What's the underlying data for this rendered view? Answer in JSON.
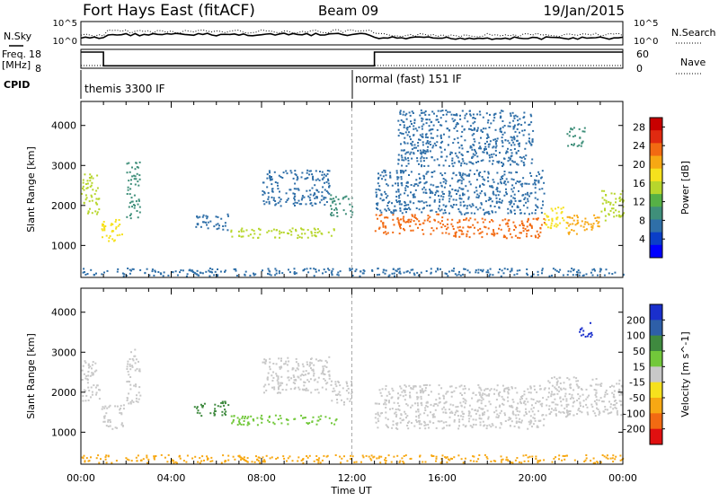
{
  "header": {
    "station": "Fort Hays East (fitACF)",
    "beam": "Beam 09",
    "date": "19/Jan/2015"
  },
  "top_panels": {
    "nsky_label": "N.Sky",
    "nsearch_label": "N.Search",
    "nsky_ticks": [
      "10^5",
      "10^0"
    ],
    "nsearch_ticks": [
      "10^5",
      "10^0"
    ],
    "freq_label_1": "Freq.",
    "freq_label_2": "[MHz]",
    "freq_ticks": [
      "18",
      "8"
    ],
    "nave_label": "Nave",
    "nave_ticks": [
      "60",
      "0"
    ],
    "cpid_label": "CPID",
    "cpid_segments": [
      {
        "label": "themis 3300 IF",
        "start_hour": 0,
        "end_hour": 12
      },
      {
        "label": "normal (fast) 151 IF",
        "start_hour": 12,
        "end_hour": 24
      }
    ],
    "freq_profile": [
      {
        "hour": 0.0,
        "mhz": 18
      },
      {
        "hour": 1.0,
        "mhz": 18
      },
      {
        "hour": 1.0,
        "mhz": 9.5
      },
      {
        "hour": 13.0,
        "mhz": 9.5
      },
      {
        "hour": 13.0,
        "mhz": 18
      },
      {
        "hour": 24.0,
        "mhz": 18
      }
    ]
  },
  "x_axis": {
    "label": "Time UT",
    "ticks": [
      "00:00",
      "04:00",
      "08:00",
      "12:00",
      "16:00",
      "20:00",
      "00:00"
    ]
  },
  "chart_data": [
    {
      "type": "heatmap",
      "panel": "power",
      "ylabel": "Slant Range [km]",
      "yticks": [
        1000,
        2000,
        3000,
        4000
      ],
      "ylim": [
        200,
        4600
      ],
      "xlim_hours": [
        0,
        24
      ],
      "colorbar_label": "Power [dB]",
      "colorbar_ticks": [
        4,
        8,
        12,
        16,
        20,
        24,
        28
      ],
      "colorbar_colors": [
        "#0000ff",
        "#0a3ec8",
        "#2f6fa8",
        "#3f8f7a",
        "#56b046",
        "#b7d62c",
        "#f6e11d",
        "#f7a813",
        "#f26a12",
        "#e02a10",
        "#c80000"
      ],
      "colorbar_range": [
        0,
        30
      ],
      "regions": [
        {
          "t0": 0.0,
          "t1": 0.8,
          "r0": 1800,
          "r1": 2800,
          "value": 14
        },
        {
          "t0": 0.9,
          "t1": 1.9,
          "r0": 1100,
          "r1": 1700,
          "value": 18
        },
        {
          "t0": 2.0,
          "t1": 2.6,
          "r0": 1700,
          "r1": 3100,
          "value": 10
        },
        {
          "t0": 5.0,
          "t1": 6.5,
          "r0": 1400,
          "r1": 1800,
          "value": 8
        },
        {
          "t0": 6.5,
          "t1": 11.3,
          "r0": 1200,
          "r1": 1450,
          "value": 16
        },
        {
          "t0": 8.0,
          "t1": 11.0,
          "r0": 2000,
          "r1": 2900,
          "value": 6
        },
        {
          "t0": 11.0,
          "t1": 12.0,
          "r0": 1700,
          "r1": 2300,
          "value": 10
        },
        {
          "t0": 13.0,
          "t1": 16.0,
          "r0": 1300,
          "r1": 1800,
          "value": 22
        },
        {
          "t0": 16.0,
          "t1": 20.5,
          "r0": 1200,
          "r1": 1700,
          "value": 24
        },
        {
          "t0": 13.0,
          "t1": 20.5,
          "r0": 1800,
          "r1": 2900,
          "value": 8
        },
        {
          "t0": 20.5,
          "t1": 21.5,
          "r0": 1400,
          "r1": 2000,
          "value": 18
        },
        {
          "t0": 21.5,
          "t1": 23.0,
          "r0": 1300,
          "r1": 1800,
          "value": 20
        },
        {
          "t0": 23.0,
          "t1": 24.0,
          "r0": 1600,
          "r1": 2400,
          "value": 14
        },
        {
          "t0": 14.0,
          "t1": 20.0,
          "r0": 3000,
          "r1": 4400,
          "value": 6
        },
        {
          "t0": 21.5,
          "t1": 22.3,
          "r0": 3500,
          "r1": 4000,
          "value": 10
        },
        {
          "t0": 0.0,
          "t1": 24.0,
          "r0": 250,
          "r1": 450,
          "value": 6
        }
      ]
    },
    {
      "type": "heatmap",
      "panel": "velocity",
      "ylabel": "Slant Range [km]",
      "yticks": [
        1000,
        2000,
        3000,
        4000
      ],
      "ylim": [
        200,
        4600
      ],
      "xlim_hours": [
        0,
        24
      ],
      "colorbar_label": "Velocity [m s^-1]",
      "colorbar_ticks": [
        "200",
        "100",
        "50",
        "15",
        "-15",
        "-50",
        "-100",
        "-200"
      ],
      "colorbar_colors": [
        "#1a2fcc",
        "#2e5fa8",
        "#3f8a3f",
        "#72c83a",
        "#c8c8c8",
        "#f6e11d",
        "#f7a813",
        "#f26a12",
        "#e01010"
      ],
      "regions": [
        {
          "t0": 0.0,
          "t1": 0.8,
          "r0": 1800,
          "r1": 2800,
          "color": "#c8c8c8"
        },
        {
          "t0": 0.9,
          "t1": 1.9,
          "r0": 1100,
          "r1": 1700,
          "color": "#c8c8c8"
        },
        {
          "t0": 2.0,
          "t1": 2.6,
          "r0": 1700,
          "r1": 3100,
          "color": "#c8c8c8"
        },
        {
          "t0": 5.0,
          "t1": 6.5,
          "r0": 1400,
          "r1": 1800,
          "color": "#3f8a3f"
        },
        {
          "t0": 6.5,
          "t1": 11.3,
          "r0": 1200,
          "r1": 1450,
          "color": "#72c83a"
        },
        {
          "t0": 8.0,
          "t1": 11.0,
          "r0": 2000,
          "r1": 2900,
          "color": "#c8c8c8"
        },
        {
          "t0": 11.0,
          "t1": 12.0,
          "r0": 1700,
          "r1": 2300,
          "color": "#c8c8c8"
        },
        {
          "t0": 13.0,
          "t1": 20.5,
          "r0": 1100,
          "r1": 2200,
          "color": "#c8c8c8"
        },
        {
          "t0": 20.5,
          "t1": 24.0,
          "r0": 1400,
          "r1": 2400,
          "color": "#c8c8c8"
        },
        {
          "t0": 22.0,
          "t1": 22.6,
          "r0": 3400,
          "r1": 3800,
          "color": "#1a2fcc"
        },
        {
          "t0": 0.0,
          "t1": 24.0,
          "r0": 250,
          "r1": 450,
          "color": "#f7a813"
        }
      ]
    }
  ]
}
